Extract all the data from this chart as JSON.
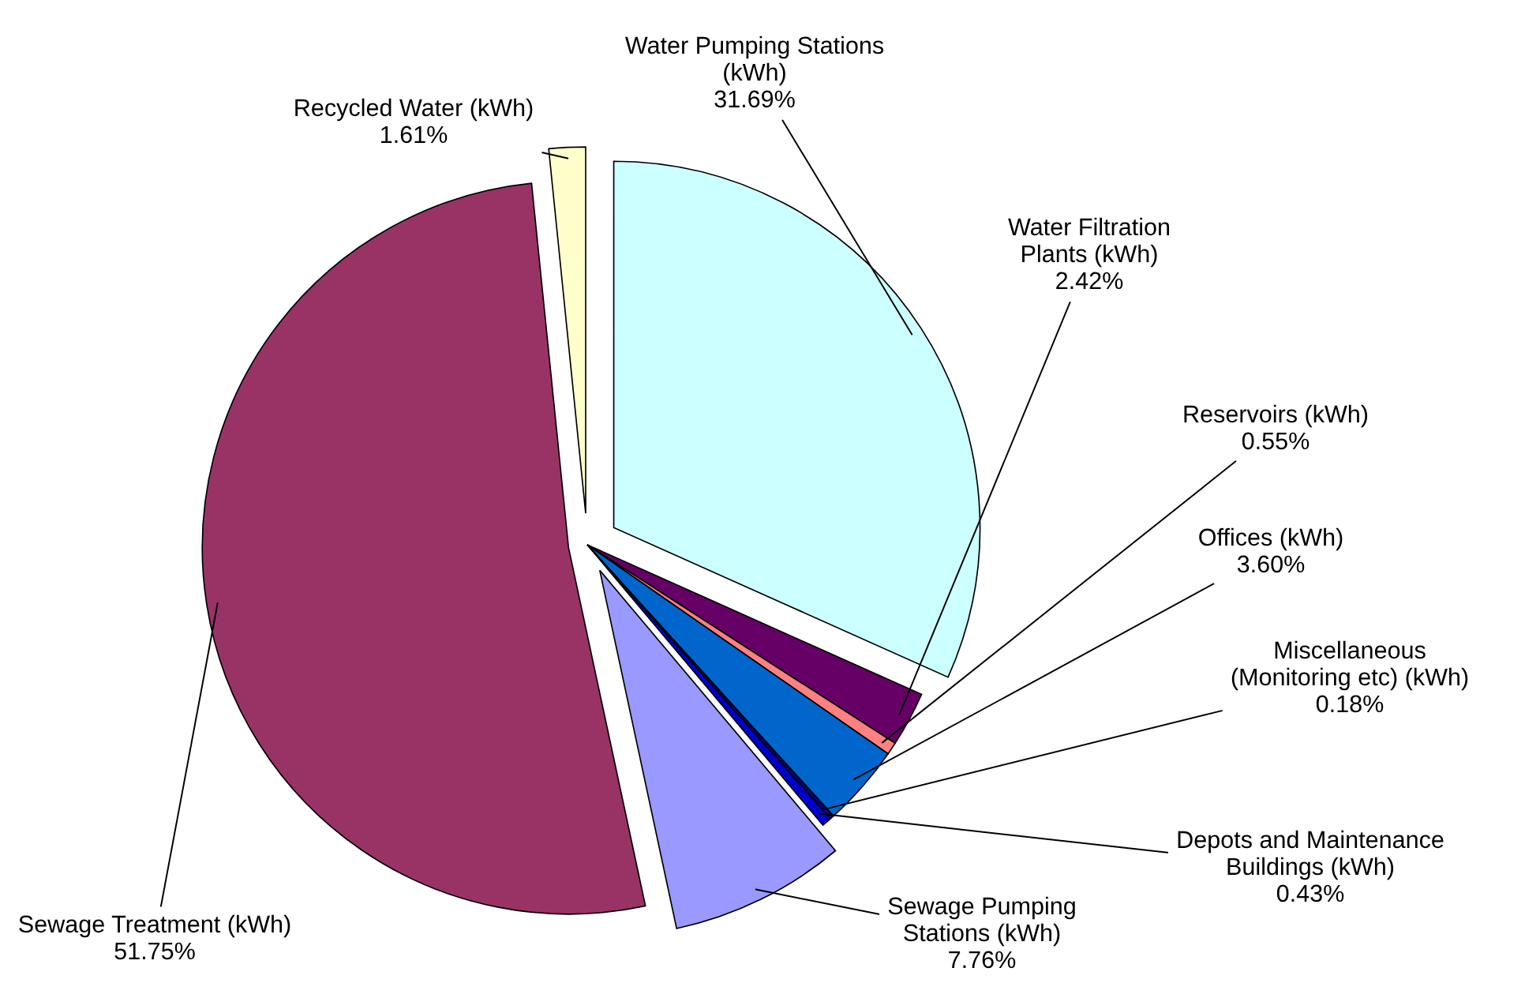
{
  "chart_data": {
    "type": "pie",
    "categories": [
      "Water Pumping Stations (kWh)",
      "Water Filtration Plants (kWh)",
      "Reservoirs (kWh)",
      "Offices (kWh)",
      "Miscellaneous (Monitoring etc) (kWh)",
      "Depots and Maintenance Buildings (kWh)",
      "Sewage Pumping Stations (kWh)",
      "Sewage Treatment (kWh)",
      "Recycled Water (kWh)"
    ],
    "values": [
      31.69,
      2.42,
      0.55,
      3.6,
      0.18,
      0.43,
      7.76,
      51.75,
      1.61
    ],
    "value_labels": [
      "31.69%",
      "2.42%",
      "0.55%",
      "3.60%",
      "0.18%",
      "0.43%",
      "7.76%",
      "51.75%",
      "1.61%"
    ],
    "colors": [
      "#ccffff",
      "#660066",
      "#ff8080",
      "#0066cc",
      "#000080",
      "#0000cc",
      "#9999ff",
      "#993366",
      "#ffffcc"
    ]
  }
}
